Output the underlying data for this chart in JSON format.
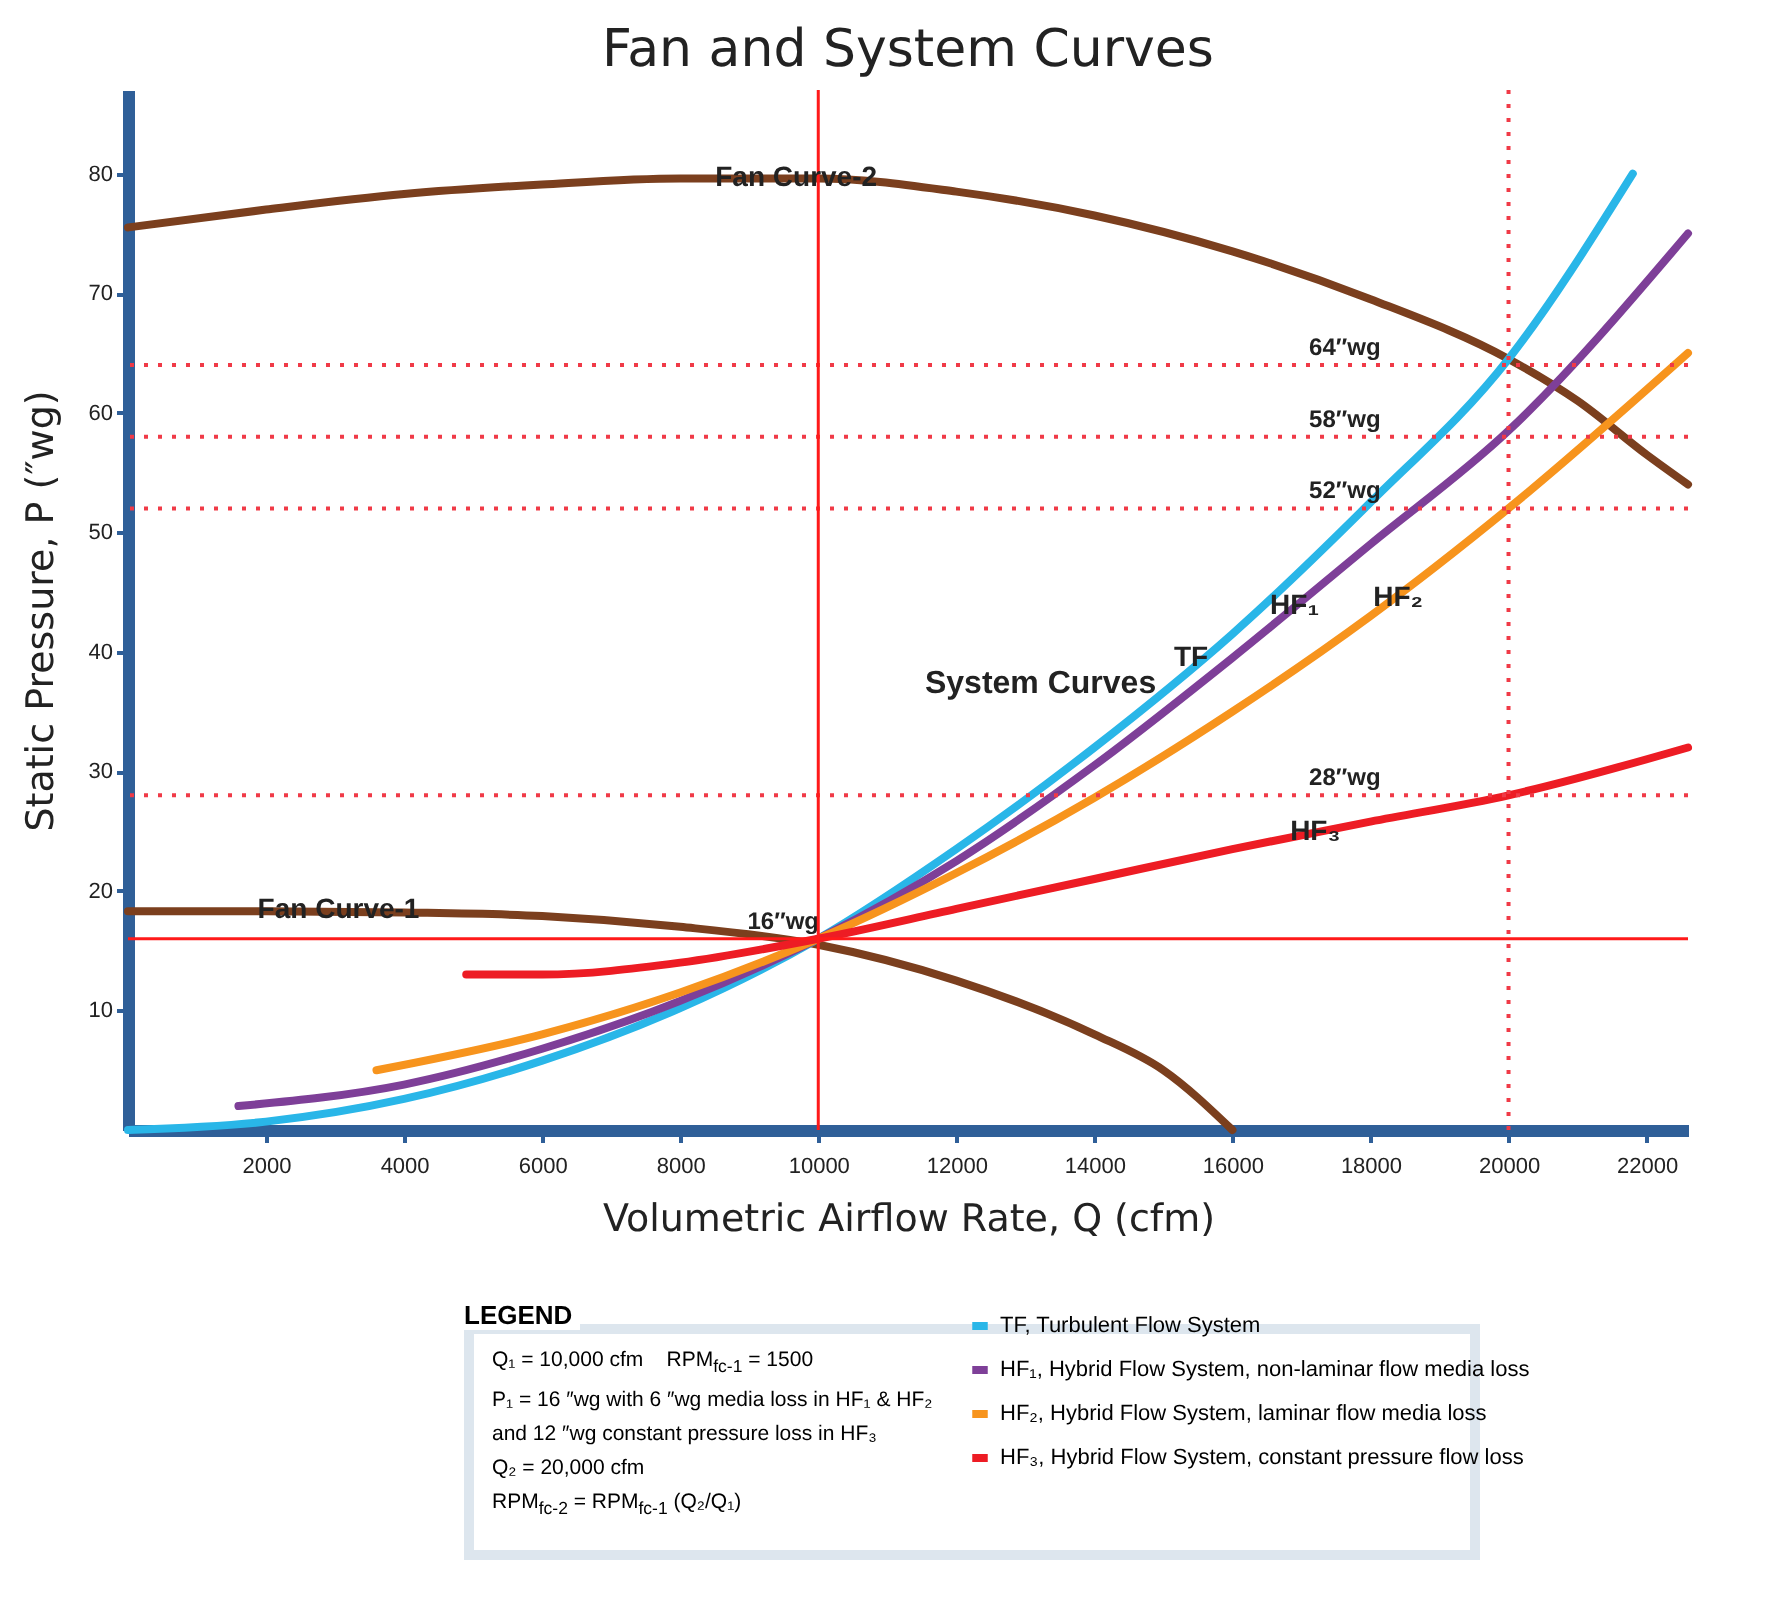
{
  "chart_data": {
    "type": "line",
    "title": "Fan and System Curves",
    "xlabel": "Volumetric Airflow Rate, Q (cfm)",
    "ylabel": "Static Pressure, P (″wg)",
    "legend_title": "LEGEND",
    "legend": "bottom",
    "marker": "none",
    "line_style": "solid",
    "grid": false,
    "xlim": [
      0,
      22600
    ],
    "ylim": [
      0,
      87
    ],
    "xticks": [
      2000,
      4000,
      6000,
      8000,
      10000,
      12000,
      14000,
      16000,
      18000,
      20000,
      22000
    ],
    "yticks": [
      10,
      20,
      30,
      40,
      50,
      60,
      70,
      80
    ],
    "series": [
      {
        "color": "#7b3f1e",
        "x": [
          0,
          2000,
          4000,
          6000,
          8000,
          10000,
          12000,
          14000,
          15000,
          16000
        ],
        "values": [
          18.3,
          18.3,
          18.2,
          17.9,
          17,
          15.5,
          12.5,
          8,
          5,
          0
        ]
      },
      {
        "color": "#7b3f1e",
        "x": [
          0,
          2000,
          4000,
          6000,
          8000,
          10000,
          12000,
          14000,
          16000,
          18000,
          20000,
          21000,
          22000,
          22600
        ],
        "values": [
          75.5,
          77,
          78.3,
          79.1,
          79.6,
          79.6,
          78.5,
          76.5,
          73.5,
          69.5,
          64.5,
          61,
          56.5,
          54
        ]
      },
      {
        "name": "TF, Turbulent Flow System",
        "color": "#29b6e8",
        "x": [
          0,
          2000,
          4000,
          6000,
          8000,
          10000,
          12000,
          14000,
          16000,
          18000,
          20000,
          21800
        ],
        "values": [
          0,
          0.7,
          2.6,
          5.8,
          10.2,
          16,
          23.5,
          32,
          41.5,
          52.5,
          64.5,
          80
        ]
      },
      {
        "name": "HF₁, Hybrid Flow System, non-laminar flow media loss",
        "color": "#7e3f98",
        "x": [
          1600,
          4000,
          6000,
          8000,
          10000,
          12000,
          14000,
          16000,
          18000,
          20000,
          22600
        ],
        "values": [
          2,
          3.8,
          6.8,
          10.8,
          16,
          22.5,
          30.5,
          39.5,
          49,
          58.5,
          75
        ]
      },
      {
        "name": "HF₂, Hybrid Flow System, laminar flow media loss",
        "color": "#f7941d",
        "x": [
          3600,
          6000,
          8000,
          10000,
          12000,
          14000,
          16000,
          18000,
          20000,
          22600
        ],
        "values": [
          5,
          8,
          11.5,
          16,
          21.5,
          27.8,
          35,
          43,
          52,
          65
        ]
      },
      {
        "name": "HF₃, Hybrid Flow System, constant pressure flow loss",
        "color": "#ed1c24",
        "x": [
          4900,
          6000,
          8000,
          10000,
          12000,
          14000,
          16000,
          18000,
          20000,
          22600
        ],
        "values": [
          13,
          13,
          14,
          16,
          18.5,
          21,
          23.5,
          25.8,
          28,
          32
        ]
      }
    ],
    "ref_lines": [
      {
        "axis": "y",
        "value": 64,
        "label": "64″wg",
        "color": "#f03a47",
        "line_style": "dotted"
      },
      {
        "axis": "y",
        "value": 58,
        "label": "58″wg",
        "color": "#f03a47",
        "line_style": "dotted"
      },
      {
        "axis": "y",
        "value": 52,
        "label": "52″wg",
        "color": "#f03a47",
        "line_style": "dotted"
      },
      {
        "axis": "y",
        "value": 28,
        "label": "28″wg",
        "color": "#f03a47",
        "line_style": "dotted"
      },
      {
        "axis": "x",
        "value": 20000,
        "color": "#f03a47",
        "line_style": "dotted"
      },
      {
        "axis": "y",
        "value": 16,
        "label": "16″wg",
        "color": "#ff1a1a",
        "line_style": "solid"
      },
      {
        "axis": "x",
        "value": 10000,
        "color": "#ff1a1a",
        "line_style": "solid"
      }
    ],
    "annotations": [
      {
        "text": "Fan Curve-1",
        "x": 3050,
        "y": 18.4
      },
      {
        "text": "Fan Curve-2",
        "x": 9680,
        "y": 79.6
      },
      {
        "text": "TF",
        "x": 15400,
        "y": 39.5
      },
      {
        "text": "HF₁",
        "x": 16900,
        "y": 43.8
      },
      {
        "text": "HF₂",
        "x": 18400,
        "y": 44.5
      },
      {
        "text": "HF₃",
        "x": 17200,
        "y": 24.9
      },
      "System Curves",
      "Q₁ = 10,000 cfm    RPM$_{fc-1}$ = 1500",
      "P₁ = 16 ″wg with 6 ″wg media loss in HF₁ & HF₂",
      "and 12 ″wg constant pressure loss in HF₃",
      "Q₂ = 20,000 cfm",
      "RPM$_{fc-2}$ = RPM$_{fc-1}$ (Q₂/Q₁)"
    ]
  }
}
